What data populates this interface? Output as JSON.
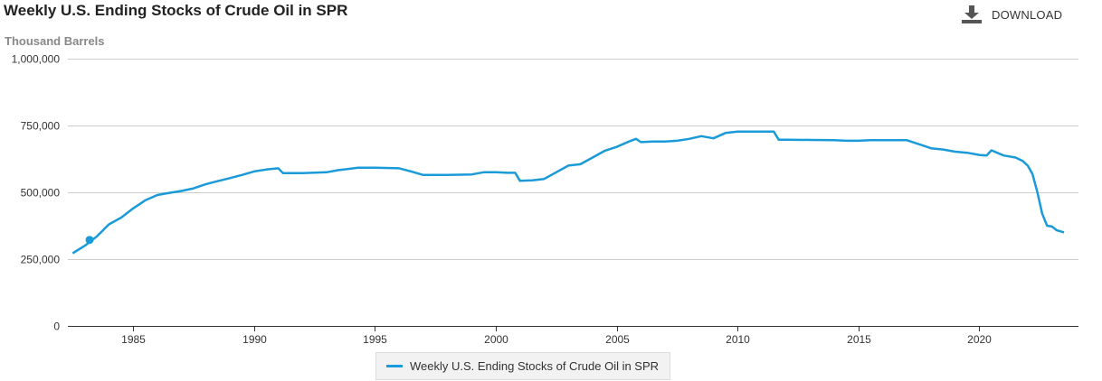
{
  "header": {
    "title": "Weekly U.S. Ending Stocks of Crude Oil in SPR",
    "units": "Thousand Barrels",
    "download_label": "DOWNLOAD",
    "download_icon": "download-icon"
  },
  "legend": {
    "label": "Weekly U.S. Ending Stocks of Crude Oil in SPR"
  },
  "colors": {
    "series": "#1a9bd7",
    "grid": "#cccccc",
    "axis": "#333333"
  },
  "chart_data": {
    "type": "line",
    "title": "Weekly U.S. Ending Stocks of Crude Oil in SPR",
    "ylabel": "Thousand Barrels",
    "xlabel": "",
    "xlim": [
      1982.3,
      2024.1
    ],
    "ylim": [
      0,
      1000000
    ],
    "y_ticks": [
      0,
      250000,
      500000,
      750000,
      1000000
    ],
    "y_tick_labels": [
      "0",
      "250,000",
      "500,000",
      "750,000",
      "1,000,000"
    ],
    "x_ticks": [
      1985,
      1990,
      1995,
      2000,
      2005,
      2010,
      2015,
      2020
    ],
    "x_tick_labels": [
      "1985",
      "1990",
      "1995",
      "2000",
      "2005",
      "2010",
      "2015",
      "2020"
    ],
    "grid": true,
    "legend_position": "bottom",
    "highlighted_point": {
      "x": 1983.2,
      "y": 322000
    },
    "series": [
      {
        "name": "Weekly U.S. Ending Stocks of Crude Oil in SPR",
        "x": [
          1982.5,
          1983.0,
          1983.5,
          1984.0,
          1984.5,
          1985.0,
          1985.5,
          1986.0,
          1986.5,
          1987.0,
          1987.5,
          1988.0,
          1988.5,
          1989.0,
          1989.5,
          1990.0,
          1990.5,
          1991.0,
          1991.2,
          1992.0,
          1993.0,
          1993.5,
          1994.3,
          1995.0,
          1996.0,
          1996.5,
          1997.0,
          1998.0,
          1999.0,
          1999.5,
          2000.0,
          2000.5,
          2000.8,
          2001.0,
          2001.5,
          2002.0,
          2002.5,
          2003.0,
          2003.5,
          2004.0,
          2004.5,
          2005.0,
          2005.5,
          2005.8,
          2006.0,
          2006.5,
          2007.0,
          2007.5,
          2008.0,
          2008.5,
          2009.0,
          2009.5,
          2010.0,
          2011.0,
          2011.5,
          2011.7,
          2012.0,
          2013.0,
          2014.0,
          2014.5,
          2015.0,
          2015.5,
          2016.0,
          2016.5,
          2017.0,
          2017.5,
          2018.0,
          2018.5,
          2019.0,
          2019.5,
          2020.0,
          2020.3,
          2020.5,
          2021.0,
          2021.5,
          2021.8,
          2022.0,
          2022.2,
          2022.4,
          2022.6,
          2022.8,
          2023.0,
          2023.2,
          2023.5
        ],
        "y": [
          272000,
          300000,
          335000,
          380000,
          405000,
          440000,
          470000,
          490000,
          498000,
          505000,
          515000,
          530000,
          542000,
          553000,
          565000,
          578000,
          585000,
          590000,
          572000,
          572000,
          575000,
          583000,
          592000,
          592000,
          590000,
          578000,
          565000,
          565000,
          567000,
          575000,
          575000,
          573000,
          573000,
          543000,
          545000,
          550000,
          575000,
          600000,
          605000,
          630000,
          655000,
          670000,
          690000,
          700000,
          688000,
          690000,
          690000,
          693000,
          700000,
          710000,
          702000,
          722000,
          727000,
          727000,
          727000,
          697000,
          697000,
          696000,
          695000,
          693000,
          693000,
          695000,
          695000,
          695000,
          695000,
          680000,
          665000,
          660000,
          652000,
          648000,
          640000,
          638000,
          657000,
          638000,
          630000,
          617000,
          600000,
          568000,
          500000,
          420000,
          375000,
          372000,
          358000,
          350000
        ]
      }
    ]
  }
}
